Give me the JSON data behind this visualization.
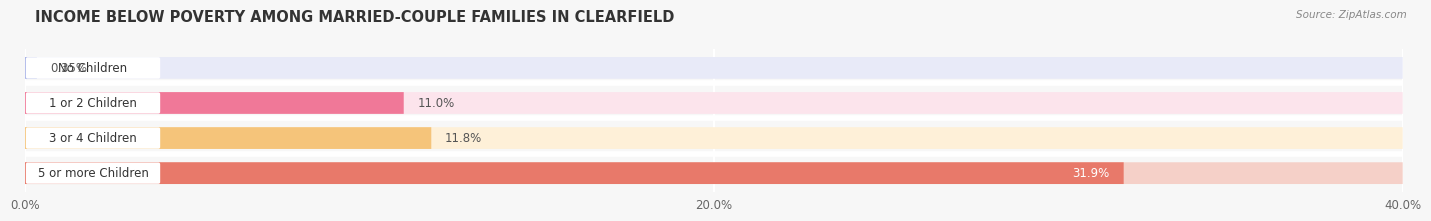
{
  "title": "INCOME BELOW POVERTY AMONG MARRIED-COUPLE FAMILIES IN CLEARFIELD",
  "source": "Source: ZipAtlas.com",
  "categories": [
    "No Children",
    "1 or 2 Children",
    "3 or 4 Children",
    "5 or more Children"
  ],
  "values": [
    0.35,
    11.0,
    11.8,
    31.9
  ],
  "bar_colors": [
    "#aab4e8",
    "#f07898",
    "#f5c47a",
    "#e8796a"
  ],
  "bar_bg_colors": [
    "#e8eaf8",
    "#fce4ec",
    "#fef0d8",
    "#f5d0c8"
  ],
  "xlim": [
    0,
    40
  ],
  "xticks": [
    0.0,
    20.0,
    40.0
  ],
  "xtick_labels": [
    "0.0%",
    "20.0%",
    "40.0%"
  ],
  "background_color": "#f7f7f7",
  "bar_height": 0.62,
  "title_fontsize": 10.5,
  "label_fontsize": 8.5,
  "value_fontsize": 8.5,
  "value_label_last_color": "#ffffff"
}
